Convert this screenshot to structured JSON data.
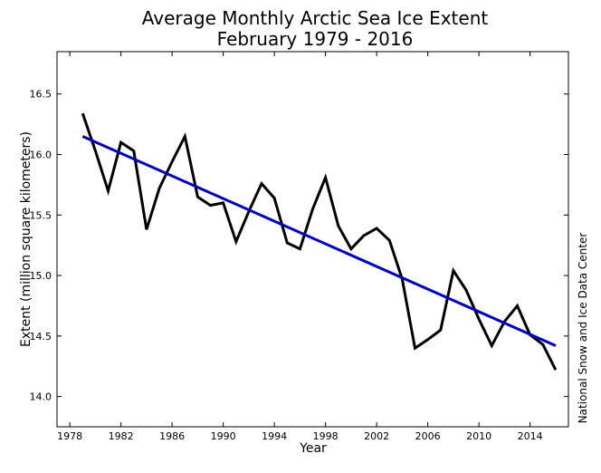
{
  "chart_data": {
    "type": "line",
    "title": "Average Monthly Arctic Sea Ice Extent",
    "subtitle": "February 1979 - 2016",
    "xlabel": "Year",
    "ylabel": "Extent (million square kilometers)",
    "credit": "National Snow and Ice Data Center",
    "xlim": [
      1977,
      2017
    ],
    "ylim": [
      13.75,
      16.85
    ],
    "xticks": [
      1978,
      1982,
      1986,
      1990,
      1994,
      1998,
      2002,
      2006,
      2010,
      2014
    ],
    "yticks": [
      14.0,
      14.5,
      15.0,
      15.5,
      16.0,
      16.5
    ],
    "grid": false,
    "legend": "none",
    "series": [
      {
        "color": "#000000",
        "x": [
          1979,
          1980,
          1981,
          1982,
          1983,
          1984,
          1985,
          1986,
          1987,
          1988,
          1989,
          1990,
          1991,
          1992,
          1993,
          1994,
          1995,
          1996,
          1997,
          1998,
          1999,
          2000,
          2001,
          2002,
          2003,
          2004,
          2005,
          2006,
          2007,
          2008,
          2009,
          2010,
          2011,
          2012,
          2013,
          2014,
          2015,
          2016
        ],
        "values": [
          16.34,
          16.03,
          15.7,
          16.1,
          16.03,
          15.38,
          15.72,
          15.94,
          16.15,
          15.65,
          15.58,
          15.6,
          15.28,
          15.53,
          15.76,
          15.64,
          15.27,
          15.22,
          15.55,
          15.81,
          15.41,
          15.22,
          15.33,
          15.39,
          15.29,
          14.97,
          14.4,
          14.47,
          14.55,
          15.04,
          14.88,
          14.64,
          14.42,
          14.62,
          14.75,
          14.51,
          14.43,
          14.22
        ]
      },
      {
        "color": "#0000c0",
        "type": "trend",
        "x": [
          1979,
          2016
        ],
        "values": [
          16.15,
          14.42
        ]
      }
    ]
  }
}
